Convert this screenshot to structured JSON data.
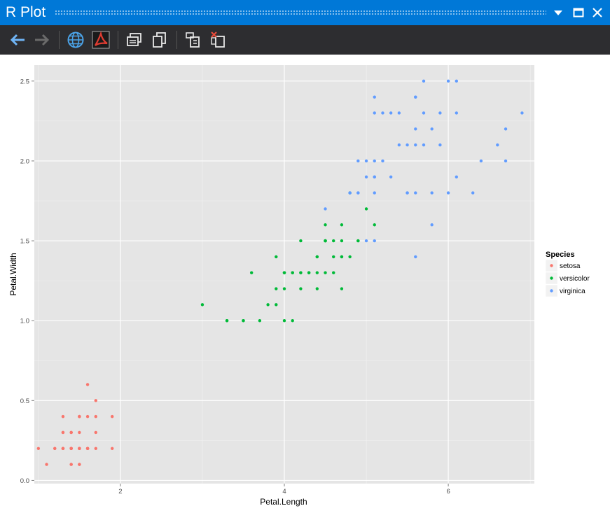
{
  "window": {
    "title": "R Plot"
  },
  "toolbar": {
    "buttons": [
      "back",
      "forward",
      "browser",
      "pdf",
      "copy-metafile",
      "copy-bitmap",
      "export-image",
      "clear-plots"
    ]
  },
  "chart_data": {
    "type": "scatter",
    "title": "",
    "xlabel": "Petal.Length",
    "ylabel": "Petal.Width",
    "x_ticks": [
      "2",
      "4",
      "6"
    ],
    "y_ticks": [
      "0.0",
      "0.5",
      "1.0",
      "1.5",
      "2.0",
      "2.5"
    ],
    "xlim": [
      0.95,
      7.05
    ],
    "ylim": [
      -0.02,
      2.6
    ],
    "grid": true,
    "legend": {
      "title": "Species",
      "position": "right"
    },
    "series": [
      {
        "name": "setosa",
        "color": "#F8766D",
        "points": [
          [
            1.4,
            0.2
          ],
          [
            1.4,
            0.2
          ],
          [
            1.3,
            0.2
          ],
          [
            1.5,
            0.2
          ],
          [
            1.4,
            0.2
          ],
          [
            1.7,
            0.4
          ],
          [
            1.4,
            0.3
          ],
          [
            1.5,
            0.2
          ],
          [
            1.4,
            0.2
          ],
          [
            1.5,
            0.1
          ],
          [
            1.5,
            0.2
          ],
          [
            1.6,
            0.2
          ],
          [
            1.4,
            0.1
          ],
          [
            1.1,
            0.1
          ],
          [
            1.2,
            0.2
          ],
          [
            1.5,
            0.4
          ],
          [
            1.3,
            0.4
          ],
          [
            1.4,
            0.3
          ],
          [
            1.7,
            0.3
          ],
          [
            1.5,
            0.3
          ],
          [
            1.7,
            0.2
          ],
          [
            1.5,
            0.4
          ],
          [
            1.0,
            0.2
          ],
          [
            1.7,
            0.5
          ],
          [
            1.9,
            0.2
          ],
          [
            1.6,
            0.2
          ],
          [
            1.6,
            0.4
          ],
          [
            1.5,
            0.2
          ],
          [
            1.4,
            0.2
          ],
          [
            1.6,
            0.2
          ],
          [
            1.6,
            0.2
          ],
          [
            1.5,
            0.4
          ],
          [
            1.5,
            0.1
          ],
          [
            1.4,
            0.2
          ],
          [
            1.5,
            0.2
          ],
          [
            1.2,
            0.2
          ],
          [
            1.3,
            0.2
          ],
          [
            1.4,
            0.1
          ],
          [
            1.3,
            0.2
          ],
          [
            1.5,
            0.2
          ],
          [
            1.3,
            0.3
          ],
          [
            1.3,
            0.3
          ],
          [
            1.3,
            0.2
          ],
          [
            1.6,
            0.6
          ],
          [
            1.9,
            0.4
          ],
          [
            1.4,
            0.3
          ],
          [
            1.6,
            0.2
          ],
          [
            1.4,
            0.2
          ],
          [
            1.5,
            0.2
          ],
          [
            1.4,
            0.2
          ]
        ]
      },
      {
        "name": "versicolor",
        "color": "#00BA38",
        "points": [
          [
            4.7,
            1.4
          ],
          [
            4.5,
            1.5
          ],
          [
            4.9,
            1.5
          ],
          [
            4.0,
            1.3
          ],
          [
            4.6,
            1.5
          ],
          [
            4.5,
            1.3
          ],
          [
            4.7,
            1.6
          ],
          [
            3.3,
            1.0
          ],
          [
            4.6,
            1.3
          ],
          [
            3.9,
            1.4
          ],
          [
            3.5,
            1.0
          ],
          [
            4.2,
            1.5
          ],
          [
            4.0,
            1.0
          ],
          [
            4.7,
            1.4
          ],
          [
            3.6,
            1.3
          ],
          [
            4.4,
            1.4
          ],
          [
            4.5,
            1.5
          ],
          [
            4.1,
            1.0
          ],
          [
            4.5,
            1.5
          ],
          [
            3.9,
            1.1
          ],
          [
            4.8,
            1.8
          ],
          [
            4.0,
            1.3
          ],
          [
            4.9,
            1.5
          ],
          [
            4.7,
            1.2
          ],
          [
            4.3,
            1.3
          ],
          [
            4.4,
            1.4
          ],
          [
            4.8,
            1.4
          ],
          [
            5.0,
            1.7
          ],
          [
            4.5,
            1.5
          ],
          [
            3.5,
            1.0
          ],
          [
            3.8,
            1.1
          ],
          [
            3.7,
            1.0
          ],
          [
            3.9,
            1.2
          ],
          [
            5.1,
            1.6
          ],
          [
            4.5,
            1.5
          ],
          [
            4.5,
            1.6
          ],
          [
            4.7,
            1.5
          ],
          [
            4.4,
            1.3
          ],
          [
            4.1,
            1.3
          ],
          [
            4.0,
            1.3
          ],
          [
            4.4,
            1.2
          ],
          [
            4.6,
            1.4
          ],
          [
            4.0,
            1.2
          ],
          [
            3.3,
            1.0
          ],
          [
            4.2,
            1.3
          ],
          [
            4.2,
            1.2
          ],
          [
            4.2,
            1.3
          ],
          [
            4.3,
            1.3
          ],
          [
            3.0,
            1.1
          ],
          [
            4.1,
            1.3
          ]
        ]
      },
      {
        "name": "virginica",
        "color": "#619CFF",
        "points": [
          [
            6.0,
            2.5
          ],
          [
            5.1,
            1.9
          ],
          [
            5.9,
            2.1
          ],
          [
            5.6,
            1.8
          ],
          [
            5.8,
            2.2
          ],
          [
            6.6,
            2.1
          ],
          [
            4.5,
            1.7
          ],
          [
            6.3,
            1.8
          ],
          [
            5.8,
            1.8
          ],
          [
            6.1,
            2.5
          ],
          [
            5.1,
            2.0
          ],
          [
            5.3,
            1.9
          ],
          [
            5.5,
            2.1
          ],
          [
            5.0,
            2.0
          ],
          [
            5.1,
            2.4
          ],
          [
            5.3,
            2.3
          ],
          [
            5.5,
            1.8
          ],
          [
            6.7,
            2.2
          ],
          [
            6.9,
            2.3
          ],
          [
            5.0,
            1.5
          ],
          [
            5.7,
            2.3
          ],
          [
            4.9,
            2.0
          ],
          [
            6.7,
            2.0
          ],
          [
            4.9,
            1.8
          ],
          [
            5.7,
            2.1
          ],
          [
            6.0,
            1.8
          ],
          [
            4.8,
            1.8
          ],
          [
            4.9,
            1.8
          ],
          [
            5.6,
            2.1
          ],
          [
            5.8,
            1.6
          ],
          [
            6.1,
            1.9
          ],
          [
            6.4,
            2.0
          ],
          [
            5.6,
            2.2
          ],
          [
            5.1,
            1.5
          ],
          [
            5.6,
            1.4
          ],
          [
            6.1,
            2.3
          ],
          [
            5.6,
            2.4
          ],
          [
            5.5,
            1.8
          ],
          [
            4.8,
            1.8
          ],
          [
            5.4,
            2.1
          ],
          [
            5.6,
            2.4
          ],
          [
            5.1,
            2.3
          ],
          [
            5.1,
            1.9
          ],
          [
            5.9,
            2.3
          ],
          [
            5.7,
            2.5
          ],
          [
            5.2,
            2.3
          ],
          [
            5.0,
            1.9
          ],
          [
            5.2,
            2.0
          ],
          [
            5.4,
            2.3
          ],
          [
            5.1,
            1.8
          ]
        ]
      }
    ]
  }
}
